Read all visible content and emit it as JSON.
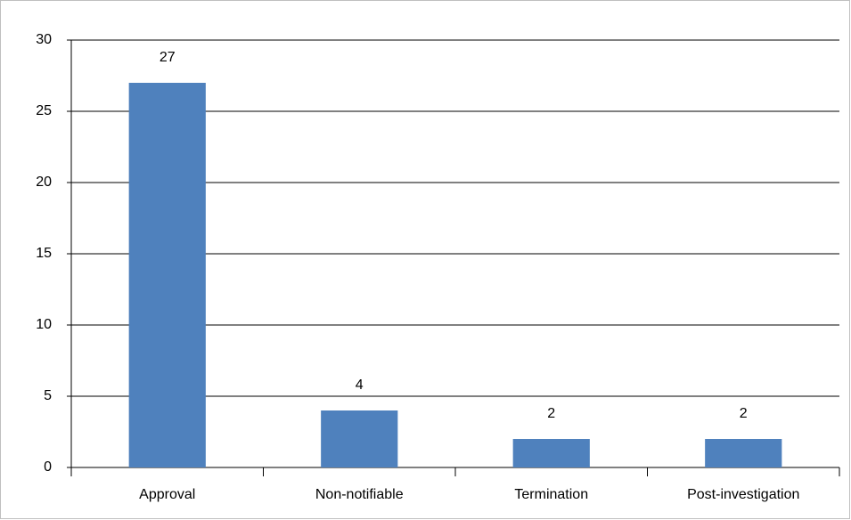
{
  "chart_data": {
    "type": "bar",
    "categories": [
      "Approval",
      "Non-notifiable",
      "Termination",
      "Post-investigation"
    ],
    "values": [
      27,
      4,
      2,
      2
    ],
    "color": "#4f81bd",
    "ylim": [
      0,
      30
    ],
    "yticks": [
      0,
      5,
      10,
      15,
      20,
      25,
      30
    ],
    "grid": true
  }
}
